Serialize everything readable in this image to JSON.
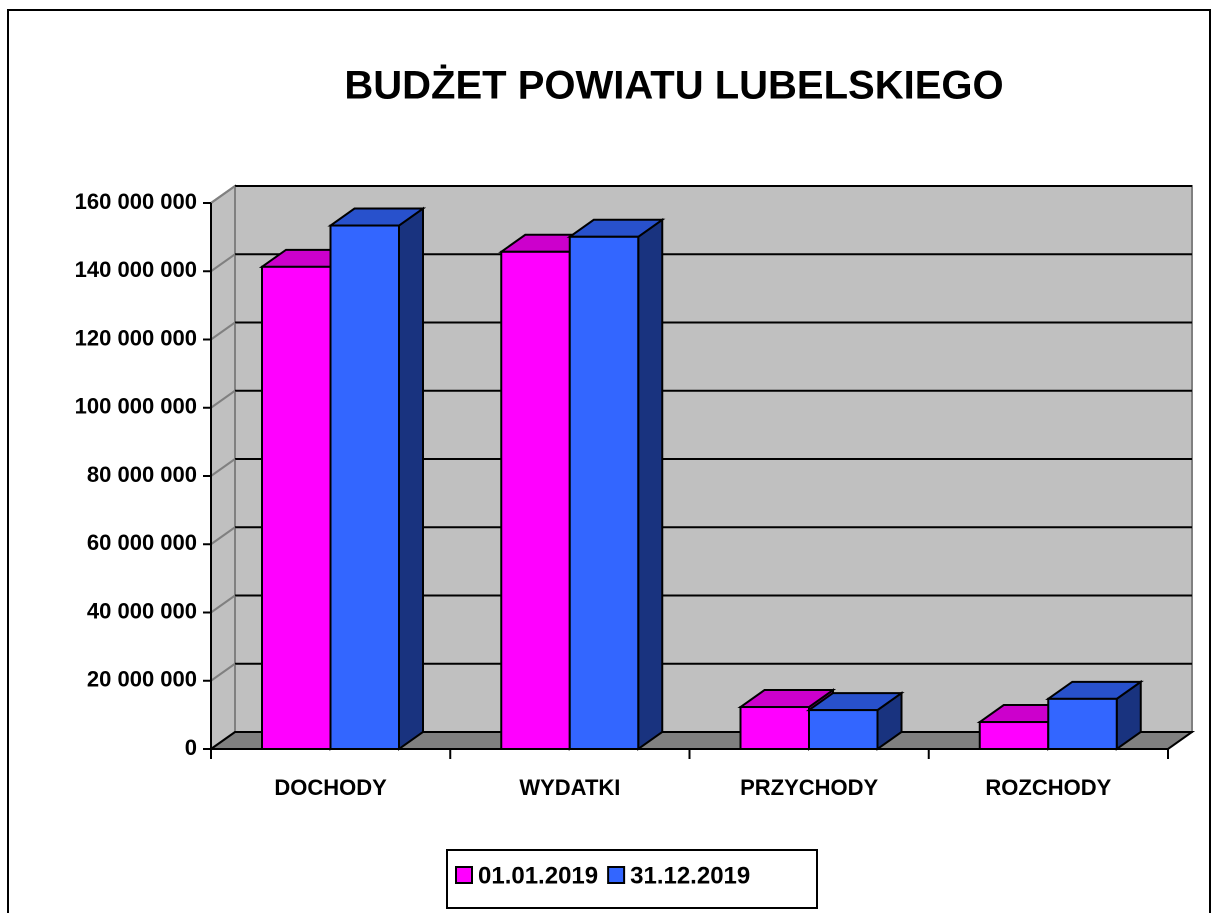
{
  "chart_data": {
    "type": "bar3d",
    "title": "BUDŻET POWIATU LUBELSKIEGO",
    "categories": [
      "DOCHODY",
      "WYDATKI",
      "PRZYCHODY",
      "ROZCHODY"
    ],
    "series": [
      {
        "name": "01.01.2019",
        "color": "#ff00ff",
        "values": [
          141300000,
          145700000,
          12300000,
          7900000
        ]
      },
      {
        "name": "31.12.2019",
        "color": "#3366ff",
        "values": [
          153400000,
          150100000,
          11400000,
          14700000
        ]
      }
    ],
    "ylim": [
      0,
      160000000
    ],
    "yticks": [
      0,
      {
        "value": 20000000,
        "label": "20 000 000"
      },
      {
        "value": 40000000,
        "label": "40 000 000"
      },
      {
        "value": 60000000,
        "label": "60 000 000"
      },
      {
        "value": 80000000,
        "label": "80 000 000"
      },
      {
        "value": 100000000,
        "label": "100 000 000"
      },
      {
        "value": 120000000,
        "label": "120 000 000"
      },
      {
        "value": 140000000,
        "label": "140 000 000"
      },
      {
        "value": 160000000,
        "label": "160 000 000"
      }
    ],
    "grid": true,
    "legend": "bottom"
  }
}
